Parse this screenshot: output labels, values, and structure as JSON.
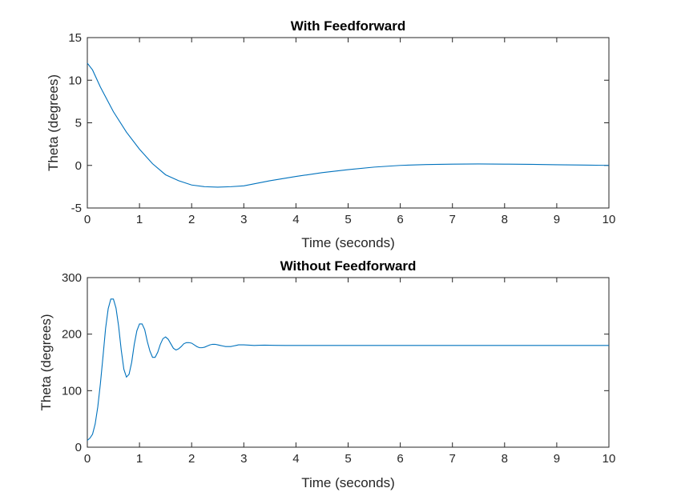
{
  "chart_data": [
    {
      "type": "line",
      "title": "With Feedforward",
      "xlabel": "Time (seconds)",
      "ylabel": "Theta (degrees)",
      "xlim": [
        0,
        10
      ],
      "ylim": [
        -5,
        15
      ],
      "xticks": [
        "0",
        "1",
        "2",
        "3",
        "4",
        "5",
        "6",
        "7",
        "8",
        "9",
        "10"
      ],
      "yticks": [
        "-5",
        "0",
        "5",
        "10",
        "15"
      ],
      "grid": false,
      "color": "#0072BD",
      "series": [
        {
          "x": [
            0,
            0.1,
            0.25,
            0.5,
            0.75,
            1.0,
            1.25,
            1.5,
            1.75,
            2.0,
            2.25,
            2.5,
            2.75,
            3.0,
            3.5,
            4.0,
            4.5,
            5.0,
            5.5,
            6.0,
            6.5,
            7.0,
            7.5,
            8.0,
            8.5,
            9.0,
            9.5,
            10.0
          ],
          "y": [
            12.0,
            11.2,
            9.2,
            6.3,
            3.9,
            1.9,
            0.2,
            -1.1,
            -1.8,
            -2.3,
            -2.5,
            -2.55,
            -2.5,
            -2.4,
            -1.8,
            -1.3,
            -0.85,
            -0.5,
            -0.2,
            0.0,
            0.1,
            0.15,
            0.17,
            0.15,
            0.12,
            0.08,
            0.04,
            0.0
          ]
        }
      ]
    },
    {
      "type": "line",
      "title": "Without Feedforward",
      "xlabel": "Time (seconds)",
      "ylabel": "Theta (degrees)",
      "xlim": [
        0,
        10
      ],
      "ylim": [
        0,
        300
      ],
      "xticks": [
        "0",
        "1",
        "2",
        "3",
        "4",
        "5",
        "6",
        "7",
        "8",
        "9",
        "10"
      ],
      "yticks": [
        "0",
        "100",
        "200",
        "300"
      ],
      "grid": false,
      "color": "#0072BD",
      "series": [
        {
          "x": [
            0,
            0.05,
            0.1,
            0.15,
            0.2,
            0.25,
            0.3,
            0.35,
            0.4,
            0.45,
            0.5,
            0.55,
            0.6,
            0.65,
            0.7,
            0.75,
            0.8,
            0.85,
            0.9,
            0.95,
            1.0,
            1.05,
            1.1,
            1.15,
            1.2,
            1.25,
            1.3,
            1.35,
            1.4,
            1.45,
            1.5,
            1.55,
            1.6,
            1.65,
            1.7,
            1.75,
            1.8,
            1.85,
            1.9,
            1.95,
            2.0,
            2.05,
            2.1,
            2.15,
            2.2,
            2.25,
            2.3,
            2.35,
            2.4,
            2.45,
            2.5,
            2.55,
            2.6,
            2.65,
            2.7,
            2.75,
            2.8,
            2.85,
            2.9,
            2.95,
            3.0,
            3.1,
            3.2,
            3.3,
            3.4,
            3.6,
            3.8,
            4.0,
            5.0,
            6.0,
            7.0,
            8.0,
            9.0,
            10.0
          ],
          "y": [
            12,
            16,
            23,
            41,
            71,
            112,
            160,
            210,
            245,
            262,
            262,
            246,
            214,
            172,
            138,
            124,
            129,
            150,
            182,
            206,
            218,
            218,
            208,
            187,
            170,
            159,
            159,
            168,
            182,
            192,
            195,
            191,
            183,
            175,
            172,
            174,
            178,
            183,
            185,
            185,
            184,
            181,
            178,
            176,
            176,
            177,
            179,
            181,
            182,
            182,
            181,
            180,
            179,
            178,
            178,
            178,
            179,
            180,
            181,
            181,
            181,
            180.5,
            180,
            180.3,
            180.5,
            180.2,
            180,
            180,
            180,
            180,
            180,
            180,
            180,
            180
          ]
        }
      ]
    }
  ]
}
